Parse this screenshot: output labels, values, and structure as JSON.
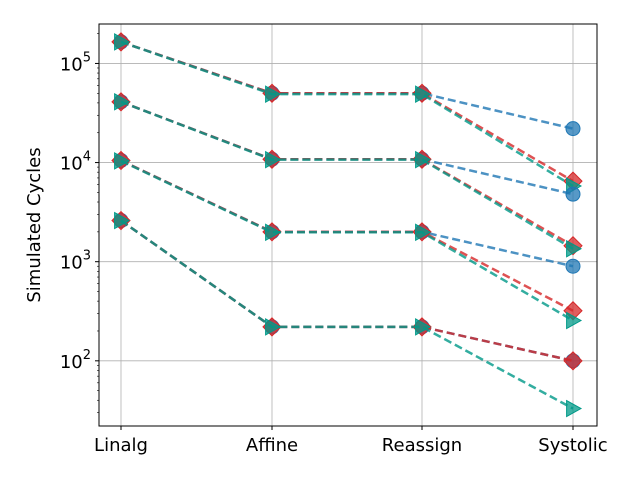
{
  "chart_data": {
    "type": "line",
    "title": "",
    "xlabel": "",
    "ylabel": "Simulated Cycles",
    "y_scale": "log",
    "ylim": [
      22,
      250000
    ],
    "grid": true,
    "legend": "none",
    "categories": [
      "Linalg",
      "Affine",
      "Reassign",
      "Systolic"
    ],
    "y_ticks": [
      {
        "value": 100,
        "base": "10",
        "exp": "2"
      },
      {
        "value": 1000,
        "base": "10",
        "exp": "3"
      },
      {
        "value": 10000,
        "base": "10",
        "exp": "4"
      },
      {
        "value": 100000,
        "base": "10",
        "exp": "5"
      }
    ],
    "series_styles": [
      {
        "marker": "circle",
        "color": "#1f77b4"
      },
      {
        "marker": "diamond",
        "color": "#d62728"
      },
      {
        "marker": "triangle-right",
        "color": "#009988"
      }
    ],
    "series": [
      {
        "group": 1,
        "style": 0,
        "values": [
          165000,
          50000,
          50000,
          22000
        ]
      },
      {
        "group": 1,
        "style": 1,
        "values": [
          165000,
          50000,
          50000,
          6500
        ]
      },
      {
        "group": 1,
        "style": 2,
        "values": [
          165000,
          49000,
          49000,
          5800
        ]
      },
      {
        "group": 2,
        "style": 0,
        "values": [
          41000,
          10800,
          10800,
          4800
        ]
      },
      {
        "group": 2,
        "style": 1,
        "values": [
          41000,
          10800,
          10800,
          1450
        ]
      },
      {
        "group": 2,
        "style": 2,
        "values": [
          41000,
          10700,
          10700,
          1350
        ]
      },
      {
        "group": 3,
        "style": 0,
        "values": [
          10500,
          2000,
          2000,
          900
        ]
      },
      {
        "group": 3,
        "style": 1,
        "values": [
          10500,
          2000,
          2000,
          320
        ]
      },
      {
        "group": 3,
        "style": 2,
        "values": [
          10400,
          1980,
          1980,
          255
        ]
      },
      {
        "group": 4,
        "style": 0,
        "values": [
          2600,
          220,
          220,
          100
        ]
      },
      {
        "group": 4,
        "style": 1,
        "values": [
          2600,
          220,
          220,
          100
        ]
      },
      {
        "group": 4,
        "style": 2,
        "values": [
          2600,
          220,
          220,
          33
        ]
      }
    ]
  }
}
